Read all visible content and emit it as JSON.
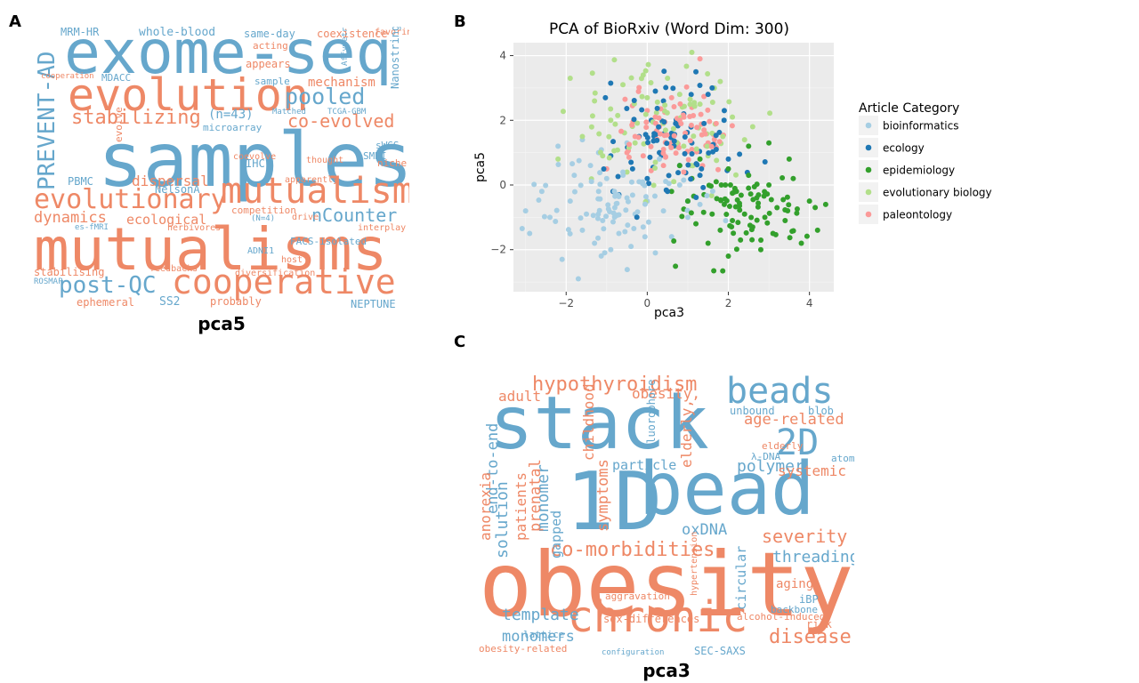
{
  "panels": {
    "a": {
      "letter": "A",
      "xlabel": "pca5"
    },
    "b": {
      "letter": "B"
    },
    "c": {
      "letter": "C",
      "xlabel": "pca3"
    }
  },
  "colors": {
    "orange": "#ee8866",
    "blue": "#66a7cc",
    "panel_bg": "#ebebeb",
    "grid": "#ffffff"
  },
  "cloud_a": [
    [
      "mutualisms",
      "o"
    ],
    [
      "samples",
      "b"
    ],
    [
      "exome-seq",
      "b"
    ],
    [
      "evolution",
      "o"
    ],
    [
      "mutualism",
      "o"
    ],
    [
      "cooperative",
      "o"
    ],
    [
      "evolutionary",
      "o"
    ],
    [
      "post-QC",
      "b"
    ],
    [
      "PREVENT-AD",
      "b"
    ],
    [
      "stabilizing",
      "o"
    ],
    [
      "pooled",
      "b"
    ],
    [
      "co-evolved",
      "o"
    ],
    [
      "nCounter",
      "b"
    ],
    [
      "dynamics",
      "o"
    ],
    [
      "ecological",
      "o"
    ],
    [
      "dispersal",
      "o"
    ],
    [
      "mechanism",
      "o"
    ],
    [
      "(n=43)",
      "b"
    ],
    [
      "whole-blood",
      "b"
    ],
    [
      "same-day",
      "b"
    ],
    [
      "coexistence",
      "o"
    ],
    [
      "MRM-HR",
      "b"
    ],
    [
      "MDACC",
      "b"
    ],
    [
      "NelsonA",
      "b"
    ],
    [
      "SS2",
      "b"
    ],
    [
      "probably",
      "o"
    ],
    [
      "NEPTUNE",
      "b"
    ],
    [
      "ephemeral",
      "o"
    ],
    [
      "competition",
      "o"
    ],
    [
      "appears",
      "o"
    ],
    [
      "acting",
      "o"
    ],
    [
      "favoring",
      "o"
    ],
    [
      "stabilising",
      "o"
    ],
    [
      "sample",
      "b"
    ],
    [
      "microarray",
      "b"
    ],
    [
      "FACS-isolated",
      "b"
    ],
    [
      "Nanostring",
      "b"
    ],
    [
      "SMRI",
      "b"
    ],
    [
      "sWGS",
      "b"
    ],
    [
      "niche",
      "o"
    ],
    [
      "PBMC",
      "b"
    ],
    [
      "IHC",
      "b"
    ],
    [
      "coevolve",
      "o"
    ],
    [
      "thought",
      "o"
    ],
    [
      "apparently",
      "o"
    ],
    [
      "diversification",
      "o"
    ],
    [
      "herbivores",
      "o"
    ],
    [
      "feedbacks",
      "o"
    ],
    [
      "interplay",
      "o"
    ],
    [
      "ROSMAP",
      "b"
    ],
    [
      "host",
      "o"
    ],
    [
      "drive",
      "o"
    ],
    [
      "ADNI1",
      "b"
    ],
    [
      "(N=4)",
      "b"
    ],
    [
      "Matched",
      "b"
    ],
    [
      "TCGA-GBM",
      "b"
    ],
    [
      "Affymetrix",
      "b"
    ],
    [
      "evolve",
      "o"
    ],
    [
      "cooperation",
      "o"
    ],
    [
      "es-fMRI",
      "b"
    ]
  ],
  "cloud_c": [
    [
      "obesity",
      "o"
    ],
    [
      "stack",
      "b"
    ],
    [
      "1D",
      "b"
    ],
    [
      "bead",
      "b"
    ],
    [
      "chronic",
      "o"
    ],
    [
      "beads",
      "b"
    ],
    [
      "2D",
      "b"
    ],
    [
      "hypothyroidism",
      "o"
    ],
    [
      "co-morbidities",
      "o"
    ],
    [
      "age-related",
      "o"
    ],
    [
      "obesity,",
      "o"
    ],
    [
      "disease",
      "o"
    ],
    [
      "severity",
      "o"
    ],
    [
      "polymer",
      "b"
    ],
    [
      "end-to-end",
      "b"
    ],
    [
      "solution",
      "b"
    ],
    [
      "monomer",
      "b"
    ],
    [
      "template",
      "b"
    ],
    [
      "monomers",
      "b"
    ],
    [
      "oxDNA",
      "b"
    ],
    [
      "threading",
      "b"
    ],
    [
      "prenatal",
      "o"
    ],
    [
      "symptoms",
      "o"
    ],
    [
      "childhood",
      "o"
    ],
    [
      "elderly,",
      "o"
    ],
    [
      "particle",
      "b"
    ],
    [
      "systemic",
      "o"
    ],
    [
      "adult",
      "o"
    ],
    [
      "patients",
      "o"
    ],
    [
      "anorexia",
      "o"
    ],
    [
      "gapped",
      "b"
    ],
    [
      "circular",
      "b"
    ],
    [
      "sex-differences",
      "o"
    ],
    [
      "alcohol-induced",
      "o"
    ],
    [
      "aggravation",
      "o"
    ],
    [
      "unbound",
      "b"
    ],
    [
      "blob",
      "b"
    ],
    [
      "aging",
      "o"
    ],
    [
      "iBP",
      "b"
    ],
    [
      "obesity-related",
      "o"
    ],
    [
      "lattice",
      "b"
    ],
    [
      "backbone",
      "b"
    ],
    [
      "risk",
      "o"
    ],
    [
      "SEC-SAXS",
      "b"
    ],
    [
      "fluorophore",
      "b"
    ],
    [
      "λ-DNA",
      "b"
    ],
    [
      "atoms",
      "b"
    ],
    [
      "elderly",
      "o"
    ],
    [
      "hypertension",
      "o"
    ],
    [
      "configuration",
      "b"
    ]
  ],
  "chart_data": {
    "type": "scatter",
    "title": "PCA of BioRxiv (Word Dim: 300)",
    "xlabel": "pca3",
    "ylabel": "pca5",
    "xlim": [
      -3.3,
      4.6
    ],
    "ylim": [
      -3.3,
      4.4
    ],
    "xticks": [
      -2,
      0,
      2,
      4
    ],
    "yticks": [
      -2,
      0,
      2,
      4
    ],
    "grid": true,
    "legend": {
      "title": "Article Category",
      "placement": "right"
    },
    "series": [
      {
        "name": "bioinformatics",
        "color": "#a6cee3",
        "center": [
          -0.9,
          -0.6
        ],
        "spread": [
          1.0,
          0.8
        ],
        "points": [
          [
            -2.9,
            -1.5
          ],
          [
            -2.6,
            -0.2
          ],
          [
            -2.4,
            -1.0
          ],
          [
            -2.1,
            -2.3
          ],
          [
            -1.9,
            -0.5
          ],
          [
            -1.8,
            0.3
          ],
          [
            -1.7,
            -2.9
          ],
          [
            -1.6,
            -1.4
          ],
          [
            -1.5,
            -0.9
          ],
          [
            -1.4,
            0.6
          ],
          [
            -1.3,
            -1.8
          ],
          [
            -1.2,
            -0.2
          ],
          [
            -1.1,
            -1.1
          ],
          [
            -1.0,
            0.2
          ],
          [
            -0.9,
            -2.0
          ],
          [
            -0.8,
            -0.7
          ],
          [
            -0.7,
            -1.5
          ],
          [
            -0.6,
            0.4
          ],
          [
            -0.5,
            -0.4
          ],
          [
            -0.4,
            -1.9
          ],
          [
            -0.3,
            -0.9
          ],
          [
            -0.2,
            0.1
          ],
          [
            -0.1,
            -1.3
          ],
          [
            0.0,
            -0.5
          ],
          [
            0.2,
            -2.1
          ],
          [
            0.4,
            -0.8
          ],
          [
            0.6,
            -1.6
          ],
          [
            0.8,
            0.0
          ],
          [
            1.0,
            -1.0
          ],
          [
            1.3,
            -0.6
          ],
          [
            -2.2,
            1.2
          ],
          [
            -1.6,
            1.4
          ],
          [
            -1.2,
            1.0
          ],
          [
            -0.5,
            1.3
          ],
          [
            -3.0,
            -0.8
          ],
          [
            0.3,
            0.8
          ]
        ]
      },
      {
        "name": "ecology",
        "color": "#1f78b4",
        "center": [
          0.7,
          1.5
        ],
        "spread": [
          0.8,
          0.9
        ],
        "points": [
          [
            1.2,
            3.5
          ],
          [
            1.5,
            2.8
          ],
          [
            0.4,
            2.6
          ],
          [
            1.9,
            2.3
          ],
          [
            0.1,
            2.0
          ],
          [
            0.9,
            2.2
          ],
          [
            1.4,
            1.9
          ],
          [
            0.6,
            1.6
          ],
          [
            -0.2,
            1.5
          ],
          [
            1.1,
            1.3
          ],
          [
            0.3,
            1.0
          ],
          [
            1.7,
            1.1
          ],
          [
            0.8,
            0.6
          ],
          [
            -0.4,
            0.7
          ],
          [
            1.3,
            0.3
          ],
          [
            0.0,
            0.2
          ],
          [
            0.5,
            -0.2
          ],
          [
            -0.7,
            -0.3
          ],
          [
            1.0,
            -0.5
          ],
          [
            2.0,
            0.8
          ],
          [
            0.2,
            2.9
          ],
          [
            1.6,
            3.0
          ],
          [
            -0.9,
            0.9
          ],
          [
            0.7,
            1.9
          ]
        ]
      },
      {
        "name": "epidemiology",
        "color": "#33a02c",
        "center": [
          2.4,
          -0.8
        ],
        "spread": [
          0.9,
          0.6
        ],
        "points": [
          [
            4.2,
            -1.4
          ],
          [
            4.0,
            -0.5
          ],
          [
            3.8,
            -1.8
          ],
          [
            3.6,
            0.2
          ],
          [
            3.4,
            -1.1
          ],
          [
            3.2,
            -0.7
          ],
          [
            3.1,
            -1.5
          ],
          [
            3.0,
            0.0
          ],
          [
            2.9,
            -1.0
          ],
          [
            2.8,
            -2.0
          ],
          [
            2.7,
            -0.4
          ],
          [
            2.6,
            -1.3
          ],
          [
            2.5,
            0.3
          ],
          [
            2.4,
            -0.9
          ],
          [
            2.3,
            -1.7
          ],
          [
            2.2,
            -0.2
          ],
          [
            2.1,
            -1.1
          ],
          [
            2.0,
            0.5
          ],
          [
            1.9,
            -0.6
          ],
          [
            1.8,
            -1.4
          ],
          [
            1.7,
            0.1
          ],
          [
            1.6,
            -0.9
          ],
          [
            1.5,
            -1.8
          ],
          [
            1.4,
            -0.3
          ],
          [
            1.3,
            0.8
          ],
          [
            1.2,
            -1.2
          ],
          [
            1.1,
            0.2
          ],
          [
            1.0,
            -0.5
          ],
          [
            0.8,
            0.6
          ],
          [
            0.6,
            -0.2
          ],
          [
            2.5,
            1.2
          ],
          [
            3.5,
            0.8
          ],
          [
            2.0,
            -2.2
          ],
          [
            3.0,
            1.3
          ],
          [
            4.4,
            -0.6
          ]
        ]
      },
      {
        "name": "evolutionary biology",
        "color": "#b2df8a",
        "center": [
          0.3,
          1.8
        ],
        "spread": [
          1.0,
          1.0
        ],
        "points": [
          [
            1.1,
            4.1
          ],
          [
            -1.9,
            3.3
          ],
          [
            -0.6,
            3.1
          ],
          [
            0.5,
            3.3
          ],
          [
            1.8,
            3.2
          ],
          [
            -1.3,
            2.6
          ],
          [
            0.0,
            2.7
          ],
          [
            1.3,
            2.5
          ],
          [
            2.1,
            2.1
          ],
          [
            -0.9,
            2.0
          ],
          [
            0.4,
            1.9
          ],
          [
            1.6,
            1.6
          ],
          [
            -1.6,
            1.5
          ],
          [
            -0.3,
            1.3
          ],
          [
            0.9,
            1.2
          ],
          [
            2.4,
            1.4
          ],
          [
            -1.1,
            0.9
          ],
          [
            0.2,
            0.7
          ],
          [
            1.5,
            0.9
          ],
          [
            -0.5,
            0.4
          ],
          [
            -2.2,
            0.8
          ],
          [
            0.8,
            2.8
          ],
          [
            -0.1,
            3.4
          ],
          [
            2.6,
            1.8
          ]
        ]
      },
      {
        "name": "paleontology",
        "color": "#fb9a99",
        "center": [
          0.6,
          1.6
        ],
        "spread": [
          0.7,
          0.6
        ],
        "points": [
          [
            1.3,
            3.9
          ],
          [
            0.6,
            2.7
          ],
          [
            1.1,
            2.4
          ],
          [
            0.0,
            2.3
          ],
          [
            0.8,
            2.0
          ],
          [
            0.3,
            1.8
          ],
          [
            1.4,
            1.7
          ],
          [
            -0.3,
            1.5
          ],
          [
            0.6,
            1.3
          ],
          [
            1.1,
            1.1
          ],
          [
            -0.1,
            0.9
          ],
          [
            0.4,
            0.6
          ],
          [
            0.9,
            0.4
          ],
          [
            -0.5,
            1.0
          ],
          [
            1.7,
            1.9
          ],
          [
            0.2,
            2.1
          ],
          [
            -1.0,
            0.5
          ],
          [
            1.5,
            1.3
          ]
        ]
      }
    ]
  }
}
